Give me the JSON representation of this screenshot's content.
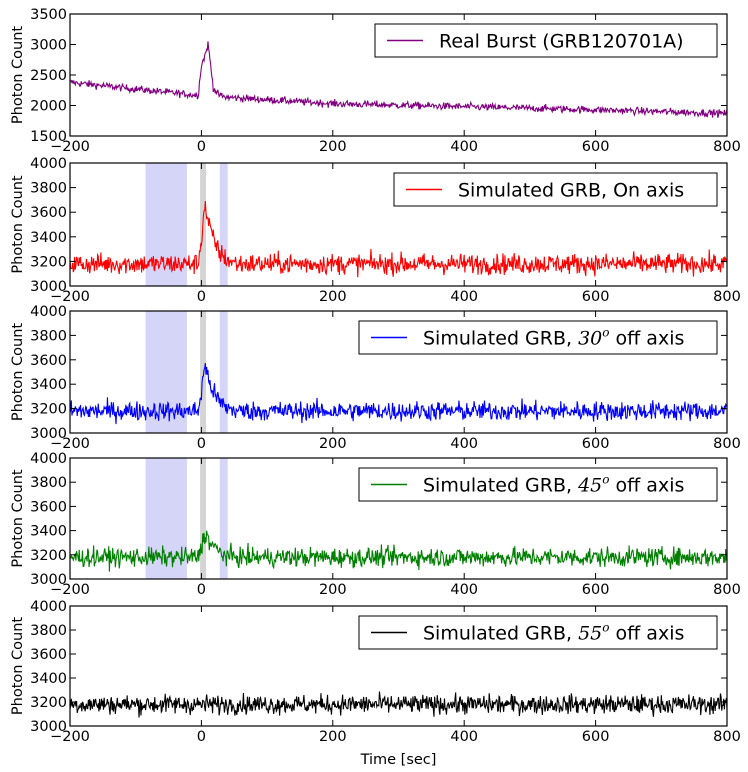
{
  "chart_data": {
    "type": "line",
    "xlabel": "Time [sec]",
    "shared_x": true,
    "panels": [
      {
        "ylabel": "Photon Count",
        "xlim": [
          -200,
          800
        ],
        "ylim": [
          1500,
          3500
        ],
        "yticks": [
          "1500",
          "2000",
          "2500",
          "3000",
          "3500"
        ],
        "xticks": [
          "−200",
          "0",
          "200",
          "400",
          "600",
          "800"
        ],
        "legend": {
          "label": "Real Burst (GRB120701A)",
          "math": "",
          "suffix": "",
          "position": "top-right"
        },
        "color": "#800080",
        "baseline": [
          [
            -200,
            2380
          ],
          [
            0,
            2160
          ],
          [
            200,
            2030
          ],
          [
            400,
            1980
          ],
          [
            600,
            1930
          ],
          [
            800,
            1870
          ]
        ],
        "noise": 30,
        "peak": [
          [
            -5,
            0
          ],
          [
            0,
            500
          ],
          [
            5,
            650
          ],
          [
            10,
            850
          ],
          [
            12,
            700
          ],
          [
            18,
            150
          ],
          [
            25,
            40
          ],
          [
            35,
            0
          ]
        ],
        "shaded": []
      },
      {
        "ylabel": "Photon Count",
        "xlim": [
          -200,
          800
        ],
        "ylim": [
          3000,
          4000
        ],
        "yticks": [
          "3000",
          "3200",
          "3400",
          "3600",
          "3800",
          "4000"
        ],
        "xticks": [
          "−200",
          "0",
          "200",
          "400",
          "600",
          "800"
        ],
        "legend": {
          "label": "Simulated GRB, On axis",
          "math": "",
          "suffix": "",
          "position": "top-right"
        },
        "color": "#ff0000",
        "baseline": [
          [
            -200,
            3180
          ],
          [
            800,
            3180
          ]
        ],
        "noise": 42,
        "peak": [
          [
            -5,
            0
          ],
          [
            0,
            200
          ],
          [
            5,
            480
          ],
          [
            10,
            350
          ],
          [
            18,
            200
          ],
          [
            28,
            90
          ],
          [
            40,
            30
          ],
          [
            55,
            0
          ]
        ],
        "shaded": [
          {
            "from": -85,
            "to": -22,
            "color": "#b3b3f2"
          },
          {
            "from": -2,
            "to": 7,
            "color": "#b0b0b0"
          },
          {
            "from": 28,
            "to": 40,
            "color": "#b3b3f2"
          }
        ]
      },
      {
        "ylabel": "Photon Count",
        "xlim": [
          -200,
          800
        ],
        "ylim": [
          3000,
          4000
        ],
        "yticks": [
          "3000",
          "3200",
          "3400",
          "3600",
          "3800",
          "4000"
        ],
        "xticks": [
          "−200",
          "0",
          "200",
          "400",
          "600",
          "800"
        ],
        "legend": {
          "label": "Simulated GRB, ",
          "math": "30",
          "suffix": " off axis",
          "position": "top-right"
        },
        "color": "#0000ff",
        "baseline": [
          [
            -200,
            3180
          ],
          [
            800,
            3180
          ]
        ],
        "noise": 40,
        "peak": [
          [
            -5,
            0
          ],
          [
            0,
            150
          ],
          [
            5,
            380
          ],
          [
            10,
            280
          ],
          [
            18,
            160
          ],
          [
            28,
            70
          ],
          [
            40,
            25
          ],
          [
            55,
            0
          ]
        ],
        "shaded": [
          {
            "from": -85,
            "to": -22,
            "color": "#b3b3f2"
          },
          {
            "from": -2,
            "to": 7,
            "color": "#b0b0b0"
          },
          {
            "from": 28,
            "to": 40,
            "color": "#b3b3f2"
          }
        ]
      },
      {
        "ylabel": "Photon Count",
        "xlim": [
          -200,
          800
        ],
        "ylim": [
          3000,
          4000
        ],
        "yticks": [
          "3000",
          "3200",
          "3400",
          "3600",
          "3800",
          "4000"
        ],
        "xticks": [
          "−200",
          "0",
          "200",
          "400",
          "600",
          "800"
        ],
        "legend": {
          "label": "Simulated GRB, ",
          "math": "45",
          "suffix": " off axis",
          "position": "top-right"
        },
        "color": "#008000",
        "baseline": [
          [
            -200,
            3180
          ],
          [
            800,
            3180
          ]
        ],
        "noise": 40,
        "peak": [
          [
            -5,
            0
          ],
          [
            0,
            80
          ],
          [
            5,
            200
          ],
          [
            10,
            150
          ],
          [
            18,
            90
          ],
          [
            28,
            40
          ],
          [
            40,
            10
          ],
          [
            55,
            0
          ]
        ],
        "shaded": [
          {
            "from": -85,
            "to": -22,
            "color": "#b3b3f2"
          },
          {
            "from": -2,
            "to": 7,
            "color": "#b0b0b0"
          },
          {
            "from": 28,
            "to": 40,
            "color": "#b3b3f2"
          }
        ]
      },
      {
        "ylabel": "Photon Count",
        "xlim": [
          -200,
          800
        ],
        "ylim": [
          3000,
          4000
        ],
        "yticks": [
          "3000",
          "3200",
          "3400",
          "3600",
          "3800",
          "4000"
        ],
        "xticks": [
          "−200",
          "0",
          "200",
          "400",
          "600",
          "800"
        ],
        "legend": {
          "label": "Simulated GRB, ",
          "math": "55",
          "suffix": " off axis",
          "position": "top-right"
        },
        "color": "#000000",
        "baseline": [
          [
            -200,
            3180
          ],
          [
            800,
            3180
          ]
        ],
        "noise": 40,
        "peak": [],
        "shaded": []
      }
    ]
  }
}
